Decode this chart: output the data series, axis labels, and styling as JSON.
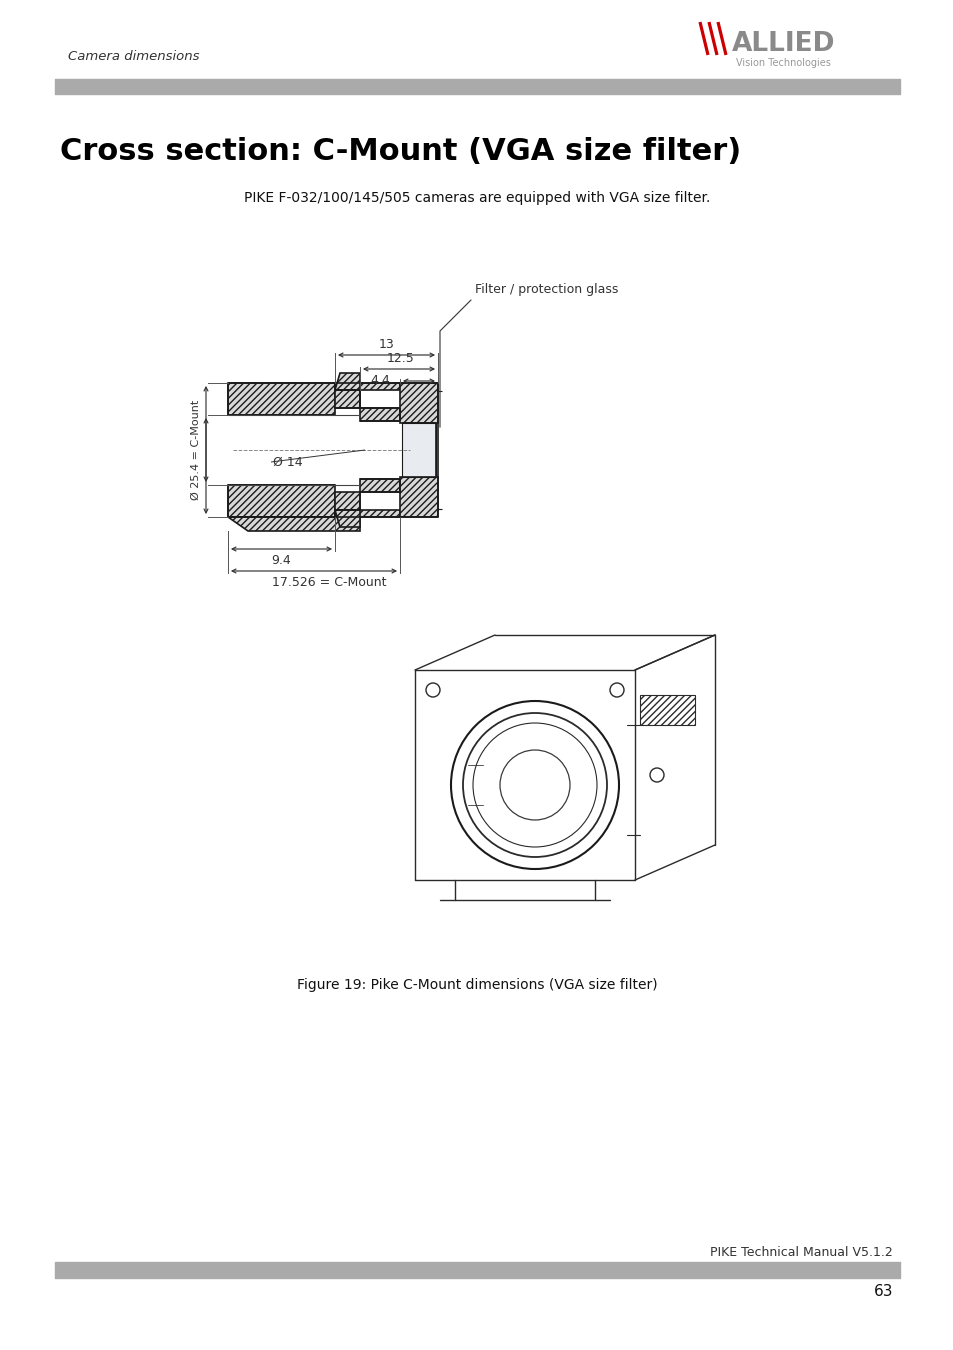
{
  "page_title": "Camera dimensions",
  "section_title": "Cross section: C-Mount (VGA size filter)",
  "subtitle": "PIKE F-032/100/145/505 cameras are equipped with VGA size filter.",
  "figure_caption": "Figure 19: Pike C-Mount dimensions (VGA size filter)",
  "footer_text": "PIKE Technical Manual V5.1.2",
  "page_number": "63",
  "dim_13": "13",
  "dim_12_5": "12.5",
  "dim_4_4": "4.4",
  "dim_dia_25_4": "Ø 25.4 = C-Mount",
  "dim_dia_14": "Ø 14",
  "dim_9_4": "9.4",
  "dim_17_526": "17.526 = C-Mount",
  "label_filter": "Filter / protection glass",
  "red_color": "#cc0000",
  "gray_bar_color": "#aaaaaa",
  "logo_allied_color": "#888888",
  "line_color": "#1a1a1a",
  "dim_color": "#333333",
  "hatch_color": "#bbbbbb"
}
